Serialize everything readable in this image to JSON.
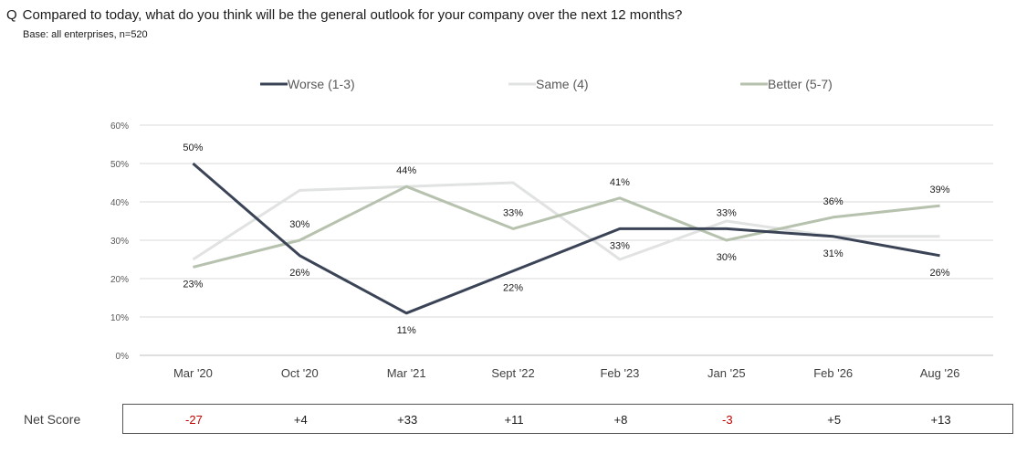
{
  "question": {
    "prefix": "Q",
    "text": "Compared to today, what do you think will be the general outlook for your company over the next 12 months?",
    "base": "Base: all enterprises,  n=520"
  },
  "chart_data": {
    "type": "line",
    "categories": [
      "Mar '20",
      "Oct '20",
      "Mar '21",
      "Sept '22",
      "Feb '23",
      "Jan '25",
      "Feb '26",
      "Aug '26"
    ],
    "ylim": [
      0,
      60
    ],
    "yticks": [
      "0%",
      "10%",
      "20%",
      "30%",
      "40%",
      "50%",
      "60%"
    ],
    "grid": true,
    "legend_position": "top",
    "series": [
      {
        "name": "Worse (1-3)",
        "color": "#3b4456",
        "values": [
          50,
          26,
          11,
          22,
          33,
          33,
          31,
          26
        ],
        "labels": [
          "50%",
          "26%",
          "11%",
          "22%",
          "33%",
          "33%",
          "31%",
          "26%"
        ]
      },
      {
        "name": "Same (4)",
        "color": "#e1e3e3",
        "values": [
          25,
          43,
          44,
          45,
          25,
          35,
          31,
          31
        ],
        "labels": []
      },
      {
        "name": "Better (5-7)",
        "color": "#b6c2ae",
        "values": [
          23,
          30,
          44,
          33,
          41,
          30,
          36,
          39
        ],
        "labels": [
          "23%",
          "30%",
          "44%",
          "33%",
          "41%",
          "30%",
          "36%",
          "39%"
        ]
      }
    ]
  },
  "net_score": {
    "label": "Net Score",
    "values": [
      "-27",
      "+4",
      "+33",
      "+11",
      "+8",
      "-3",
      "+5",
      "+13"
    ],
    "negative_color": "#c00000",
    "positive_color": "#1a1a1a"
  }
}
